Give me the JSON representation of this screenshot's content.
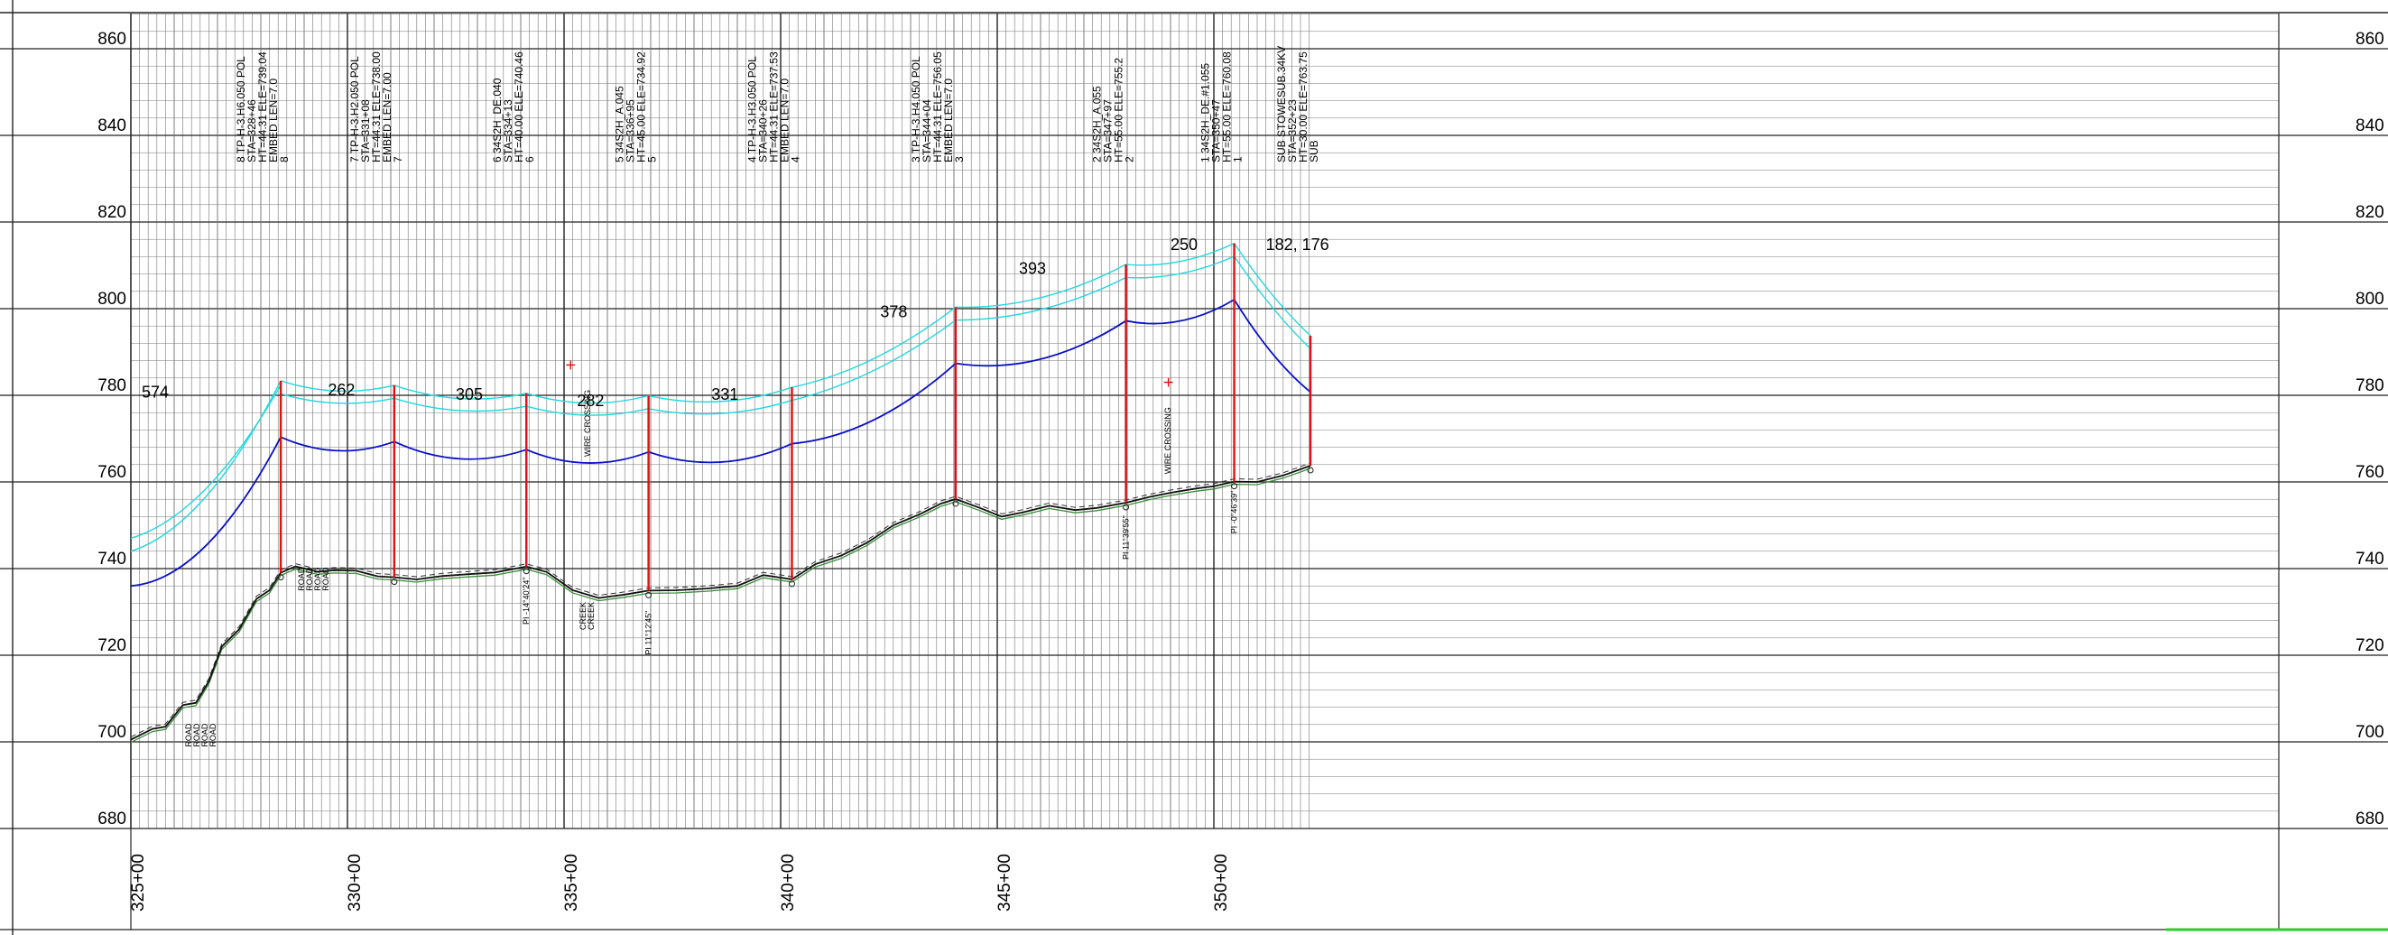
{
  "profile": {
    "elevation_labels": [
      860,
      840,
      820,
      800,
      780,
      760,
      740,
      720,
      700,
      680
    ],
    "station_labels": [
      "325+00",
      "330+00",
      "335+00",
      "340+00",
      "345+00",
      "350+00"
    ],
    "structures": [
      {
        "id": "8",
        "lines": [
          "8 TP-H-3.H6.050 POL",
          "STA=328+46",
          "HT=44.31 ELE=739.04",
          "EMBED LEN=7.0",
          "8"
        ],
        "sta": 328.46,
        "ground": 739.04,
        "top": 783.35
      },
      {
        "id": "7",
        "lines": [
          "7 TP-H-3.H2.050 POL",
          "STA=331+08",
          "HT=44.31 ELE=738.00",
          "EMBED LEN=7.00",
          "7"
        ],
        "sta": 331.08,
        "ground": 738.0,
        "top": 782.31
      },
      {
        "id": "6",
        "lines": [
          "6 34S2H_DE.040",
          "STA=334+13",
          "HT=40.00 ELE=740.46",
          "6"
        ],
        "sta": 334.13,
        "ground": 740.46,
        "top": 780.46
      },
      {
        "id": "5",
        "lines": [
          "5 34S2H_A.045",
          "STA=336+95",
          "HT=45.00 ELE=734.92",
          "5"
        ],
        "sta": 336.95,
        "ground": 734.92,
        "top": 779.92
      },
      {
        "id": "4",
        "lines": [
          "4 TP-H-3.H3.050 POL",
          "STA=340+26",
          "HT=44.31 ELE=737.53",
          "EMBED LEN=7.0",
          "4"
        ],
        "sta": 340.26,
        "ground": 737.53,
        "top": 781.84
      },
      {
        "id": "3",
        "lines": [
          "3 TP-H-3.H4.050 POL",
          "STA=344+04",
          "HT=44.31 ELE=756.05",
          "EMBED LEN=7.0",
          "3"
        ],
        "sta": 344.04,
        "ground": 756.05,
        "top": 800.36
      },
      {
        "id": "2",
        "lines": [
          "2 34S2H_A.055",
          "STA=347+97",
          "HT=55.00 ELE=755.2",
          "2"
        ],
        "sta": 347.97,
        "ground": 755.2,
        "top": 810.2
      },
      {
        "id": "1",
        "lines": [
          "1 34S2H_DE.#1.055",
          "STA=350+47",
          "HT=55.00 ELE=760.08",
          "1"
        ],
        "sta": 350.47,
        "ground": 760.08,
        "top": 815.08
      },
      {
        "id": "SUB",
        "lines": [
          "SUB STOWESUB.34KV",
          "STA=352+23",
          "HT=30.00 ELE=763.75",
          "SUB"
        ],
        "sta": 352.23,
        "ground": 763.75,
        "top": 793.75
      }
    ],
    "span_labels": [
      {
        "text": "574",
        "sta": 325.25,
        "elev": 779.5
      },
      {
        "text": "262",
        "sta": 329.55,
        "elev": 780.0
      },
      {
        "text": "305",
        "sta": 332.5,
        "elev": 779.0
      },
      {
        "text": "282",
        "sta": 335.3,
        "elev": 777.5
      },
      {
        "text": "331",
        "sta": 338.4,
        "elev": 779.0
      },
      {
        "text": "378",
        "sta": 342.3,
        "elev": 798.0
      },
      {
        "text": "393",
        "sta": 345.5,
        "elev": 808.0
      },
      {
        "text": "250",
        "sta": 349.0,
        "elev": 813.5
      },
      {
        "text": "182, 176",
        "sta": 351.2,
        "elev": 813.5
      }
    ],
    "annotations": [
      {
        "lines": [
          "ROAD",
          "ROAD",
          "ROAD",
          "ROAD"
        ],
        "sta": 326.4,
        "elev": 703.0
      },
      {
        "lines": [
          "ROAD",
          "ROAD",
          "ROAD",
          "ROAD"
        ],
        "sta": 329.0,
        "elev": 739.0
      },
      {
        "lines": [
          "CREEK",
          "CREEK"
        ],
        "sta": 335.5,
        "elev": 730.0
      },
      {
        "lines": [
          "WIRE CROSSING"
        ],
        "sta": 335.6,
        "elev": 770.0
      },
      {
        "lines": [
          "WIRE CROSSING"
        ],
        "sta": 349.0,
        "elev": 766.0
      }
    ],
    "pi_labels": [
      {
        "text": "PI -14°40'24\"",
        "sta": 334.13,
        "elev": 735.0
      },
      {
        "text": "PI 11°12'45\"",
        "sta": 336.95,
        "elev": 728.0
      },
      {
        "text": "PI 11°39'55\"",
        "sta": 347.97,
        "elev": 750.0
      },
      {
        "text": "PI -0°46'39\"",
        "sta": 350.47,
        "elev": 756.0
      }
    ],
    "colors": {
      "ground": "#111111",
      "ground_alt": "#3a8f3a",
      "structure": "#e01010",
      "conductor_upper": "#20d8e0",
      "conductor_lower": "#0a10c8",
      "grid": "#777777",
      "accent": "#2ecc2e"
    }
  }
}
